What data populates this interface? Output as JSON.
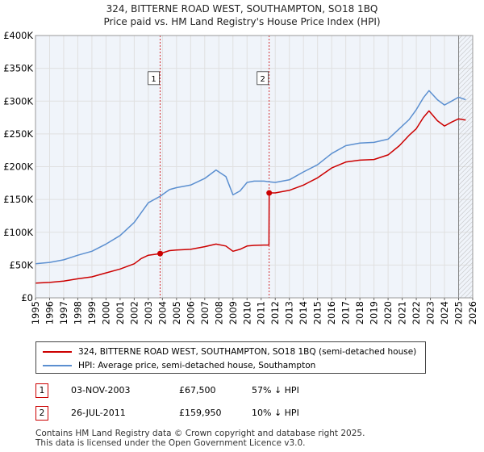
{
  "chart_data": {
    "type": "line",
    "title": "324, BITTERNE ROAD WEST, SOUTHAMPTON, SO18 1BQ",
    "subtitle": "Price paid vs. HM Land Registry's House Price Index (HPI)",
    "xlabel": "",
    "ylabel": "",
    "xlim": [
      1995,
      2026
    ],
    "ylim": [
      0,
      400000
    ],
    "x_ticks": [
      "1995",
      "1996",
      "1997",
      "1998",
      "1999",
      "2000",
      "2001",
      "2002",
      "2003",
      "2004",
      "2005",
      "2006",
      "2007",
      "2008",
      "2009",
      "2010",
      "2011",
      "2012",
      "2013",
      "2014",
      "2015",
      "2016",
      "2017",
      "2018",
      "2019",
      "2020",
      "2021",
      "2022",
      "2023",
      "2024",
      "2025",
      "2026"
    ],
    "y_ticks": [
      {
        "value": 0,
        "label": "£0"
      },
      {
        "value": 50000,
        "label": "£50K"
      },
      {
        "value": 100000,
        "label": "£100K"
      },
      {
        "value": 150000,
        "label": "£150K"
      },
      {
        "value": 200000,
        "label": "£200K"
      },
      {
        "value": 250000,
        "label": "£250K"
      },
      {
        "value": 300000,
        "label": "£300K"
      },
      {
        "value": 350000,
        "label": "£350K"
      },
      {
        "value": 400000,
        "label": "£400K"
      }
    ],
    "grid": true,
    "series": [
      {
        "name": "324, BITTERNE ROAD WEST, SOUTHAMPTON, SO18 1BQ (semi-detached house)",
        "color": "#cc0000",
        "points": [
          [
            1995.0,
            22500
          ],
          [
            1996.0,
            23500
          ],
          [
            1997.0,
            25500
          ],
          [
            1998.0,
            29000
          ],
          [
            1999.0,
            32000
          ],
          [
            2000.0,
            38000
          ],
          [
            2001.0,
            44000
          ],
          [
            2002.0,
            52000
          ],
          [
            2002.5,
            60000
          ],
          [
            2003.0,
            65000
          ],
          [
            2003.84,
            67500
          ],
          [
            2004.5,
            72000
          ],
          [
            2005.0,
            73000
          ],
          [
            2006.0,
            74000
          ],
          [
            2007.0,
            78000
          ],
          [
            2007.8,
            82000
          ],
          [
            2008.5,
            79000
          ],
          [
            2009.0,
            71000
          ],
          [
            2009.5,
            74000
          ],
          [
            2010.0,
            79000
          ],
          [
            2010.5,
            80000
          ],
          [
            2011.2,
            80500
          ],
          [
            2011.55,
            80500
          ],
          [
            2011.57,
            159950
          ],
          [
            2012.0,
            160000
          ],
          [
            2013.0,
            164000
          ],
          [
            2014.0,
            172000
          ],
          [
            2015.0,
            183000
          ],
          [
            2016.0,
            198000
          ],
          [
            2017.0,
            207000
          ],
          [
            2018.0,
            210000
          ],
          [
            2019.0,
            211000
          ],
          [
            2020.0,
            218000
          ],
          [
            2020.8,
            232000
          ],
          [
            2021.5,
            248000
          ],
          [
            2022.0,
            258000
          ],
          [
            2022.5,
            275000
          ],
          [
            2022.9,
            285000
          ],
          [
            2023.5,
            270000
          ],
          [
            2024.0,
            262000
          ],
          [
            2024.5,
            268000
          ],
          [
            2025.0,
            273000
          ],
          [
            2025.5,
            271000
          ]
        ]
      },
      {
        "name": "HPI: Average price, semi-detached house, Southampton",
        "color": "#5b8fd0",
        "points": [
          [
            1995.0,
            52000
          ],
          [
            1996.0,
            54000
          ],
          [
            1997.0,
            58000
          ],
          [
            1998.0,
            65000
          ],
          [
            1999.0,
            71000
          ],
          [
            2000.0,
            82000
          ],
          [
            2001.0,
            95000
          ],
          [
            2002.0,
            115000
          ],
          [
            2002.5,
            130000
          ],
          [
            2003.0,
            145000
          ],
          [
            2003.84,
            155000
          ],
          [
            2004.5,
            165000
          ],
          [
            2005.0,
            168000
          ],
          [
            2006.0,
            172000
          ],
          [
            2007.0,
            182000
          ],
          [
            2007.8,
            195000
          ],
          [
            2008.5,
            185000
          ],
          [
            2009.0,
            157000
          ],
          [
            2009.5,
            163000
          ],
          [
            2010.0,
            176000
          ],
          [
            2010.5,
            178000
          ],
          [
            2011.2,
            178000
          ],
          [
            2011.57,
            177000
          ],
          [
            2012.0,
            176000
          ],
          [
            2013.0,
            180000
          ],
          [
            2014.0,
            192000
          ],
          [
            2015.0,
            203000
          ],
          [
            2016.0,
            220000
          ],
          [
            2017.0,
            232000
          ],
          [
            2018.0,
            236000
          ],
          [
            2019.0,
            237000
          ],
          [
            2020.0,
            242000
          ],
          [
            2020.8,
            258000
          ],
          [
            2021.5,
            272000
          ],
          [
            2022.0,
            287000
          ],
          [
            2022.5,
            305000
          ],
          [
            2022.9,
            316000
          ],
          [
            2023.5,
            302000
          ],
          [
            2024.0,
            294000
          ],
          [
            2024.5,
            300000
          ],
          [
            2025.0,
            306000
          ],
          [
            2025.5,
            302000
          ]
        ]
      }
    ],
    "sales": [
      {
        "label": "1",
        "x": 2003.84,
        "y": 67500
      },
      {
        "label": "2",
        "x": 2011.57,
        "y": 159950
      }
    ],
    "sale_marker_y": 335000,
    "projection_start": 2025.0
  },
  "legend": {
    "property_label": "324, BITTERNE ROAD WEST, SOUTHAMPTON, SO18 1BQ (semi-detached house)",
    "hpi_label": "HPI: Average price, semi-detached house, Southampton"
  },
  "transactions": [
    {
      "num": "1",
      "date": "03-NOV-2003",
      "price": "£67,500",
      "hpi": "57% ↓ HPI"
    },
    {
      "num": "2",
      "date": "26-JUL-2011",
      "price": "£159,950",
      "hpi": "10% ↓ HPI"
    }
  ],
  "footer": {
    "line1": "Contains HM Land Registry data © Crown copyright and database right 2025.",
    "line2": "This data is licensed under the Open Government Licence v3.0."
  },
  "colors": {
    "property": "#cc0000",
    "hpi": "#5b8fd0",
    "grid": "#e0e0e0",
    "plot_bg": "#f0f4fa",
    "frame": "#999999"
  }
}
